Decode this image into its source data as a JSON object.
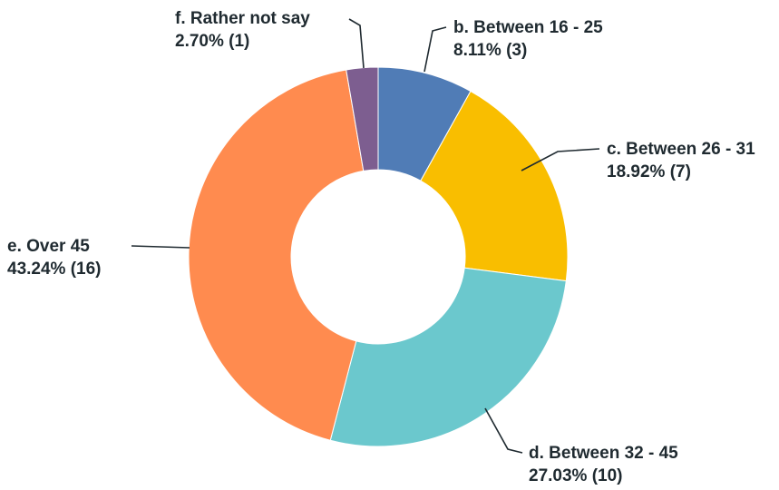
{
  "chart_data": {
    "type": "pie",
    "donut": true,
    "title": "",
    "start": "top",
    "direction": "clockwise",
    "slices": [
      {
        "id": "b",
        "label": "b. Between 16 - 25",
        "value_text": "8.11% (3)",
        "percent": 8.11,
        "count": 3,
        "color": "#507cb6"
      },
      {
        "id": "c",
        "label": "c. Between 26 - 31",
        "value_text": "18.92% (7)",
        "percent": 18.92,
        "count": 7,
        "color": "#f9be00"
      },
      {
        "id": "d",
        "label": "d. Between 32 - 45",
        "value_text": "27.03% (10)",
        "percent": 27.03,
        "count": 10,
        "color": "#6bc8cd"
      },
      {
        "id": "e",
        "label": "e. Over 45",
        "value_text": "43.24% (16)",
        "percent": 43.24,
        "count": 16,
        "color": "#ff8b4f"
      },
      {
        "id": "f",
        "label": "f. Rather not say",
        "value_text": "2.70% (1)",
        "percent": 2.7,
        "count": 1,
        "color": "#7d5e90"
      }
    ]
  }
}
